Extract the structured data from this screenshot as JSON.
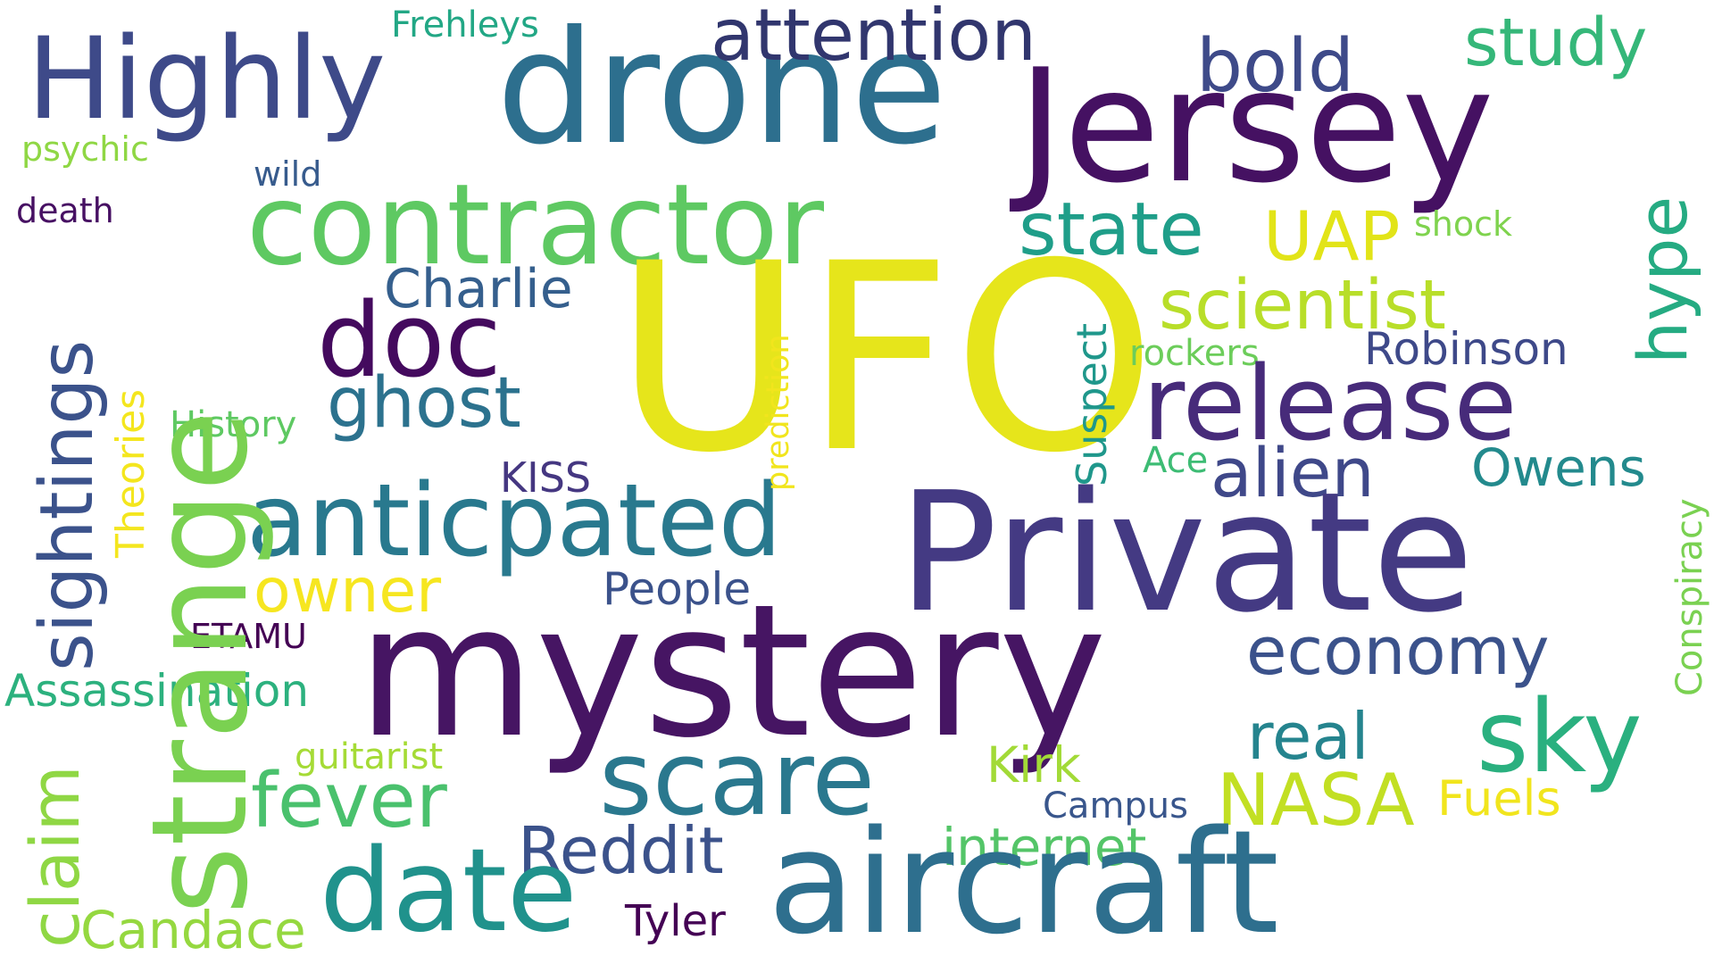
{
  "words": {
    "ufo": {
      "text": "UFO",
      "color": "#e6e51b"
    },
    "mystery": {
      "text": "mystery",
      "color": "#461563"
    },
    "private": {
      "text": "Private",
      "color": "#443a83"
    },
    "drone": {
      "text": "drone",
      "color": "#2d6f8e"
    },
    "jersey": {
      "text": "Jersey",
      "color": "#451162"
    },
    "aircraft": {
      "text": "aircraft",
      "color": "#2e6f8e"
    },
    "strange": {
      "text": "strange",
      "color": "#7ad151"
    },
    "contractor": {
      "text": "contractor",
      "color": "#5ec962"
    },
    "highly": {
      "text": "Highly",
      "color": "#3e4a89"
    },
    "release": {
      "text": "release",
      "color": "#472b7a"
    },
    "anticpated": {
      "text": "anticpated",
      "color": "#29798e"
    },
    "date": {
      "text": "date",
      "color": "#20928c"
    },
    "scare": {
      "text": "scare",
      "color": "#2a788e"
    },
    "doc": {
      "text": "doc",
      "color": "#440a5e"
    },
    "sky": {
      "text": "sky",
      "color": "#2ab07f"
    },
    "sightings": {
      "text": "sightings",
      "color": "#3b528b"
    },
    "ghost": {
      "text": "ghost",
      "color": "#2c728e"
    },
    "state": {
      "text": "state",
      "color": "#1f9e89"
    },
    "fever": {
      "text": "fever",
      "color": "#4ac16d"
    },
    "hype": {
      "text": "hype",
      "color": "#25ab82"
    },
    "claim": {
      "text": "claim",
      "color": "#8fd744"
    },
    "alien": {
      "text": "alien",
      "color": "#3f4889"
    },
    "reddit": {
      "text": "Reddit",
      "color": "#3b528b"
    },
    "attention": {
      "text": "attention",
      "color": "#31366e"
    },
    "bold": {
      "text": "bold",
      "color": "#3e4a89"
    },
    "scientist": {
      "text": "scientist",
      "color": "#b8de29"
    },
    "nasa": {
      "text": "NASA",
      "color": "#c2df23"
    },
    "economy": {
      "text": "economy",
      "color": "#3b528b"
    },
    "study": {
      "text": "study",
      "color": "#35b779"
    },
    "uap": {
      "text": "UAP",
      "color": "#e2e418"
    },
    "real": {
      "text": "real",
      "color": "#25848e"
    },
    "owner": {
      "text": "owner",
      "color": "#f6e620"
    },
    "candace": {
      "text": "Candace",
      "color": "#95d840"
    },
    "charlie": {
      "text": "Charlie",
      "color": "#355f8d"
    },
    "owens": {
      "text": "Owens",
      "color": "#238a8d"
    },
    "internet": {
      "text": "internet",
      "color": "#54c568"
    },
    "kirk": {
      "text": "Kirk",
      "color": "#a2da37"
    },
    "fuels": {
      "text": "Fuels",
      "color": "#f1e51d"
    },
    "robinson": {
      "text": "Robinson",
      "color": "#3e4989"
    },
    "assassination": {
      "text": "Assassination",
      "color": "#2cb17e"
    },
    "people": {
      "text": "People",
      "color": "#3b528b"
    },
    "tyler": {
      "text": "Tyler",
      "color": "#440154"
    },
    "theories": {
      "text": "Theories",
      "color": "#f4e61e"
    },
    "prediction": {
      "text": "prediction",
      "color": "#f1e51d"
    },
    "conspiracy": {
      "text": "Conspiracy",
      "color": "#7ad151"
    },
    "suspect": {
      "text": "Suspect",
      "color": "#1f978b"
    },
    "kiss": {
      "text": "KISS",
      "color": "#453781"
    },
    "history": {
      "text": "History",
      "color": "#5ec962"
    },
    "guitarist": {
      "text": "guitarist",
      "color": "#a5db36"
    },
    "campus": {
      "text": "Campus",
      "color": "#39568c"
    },
    "etamu": {
      "text": "ETAMU",
      "color": "#440154"
    },
    "rockers": {
      "text": "rockers",
      "color": "#6ccd5a"
    },
    "ace": {
      "text": "Ace",
      "color": "#3dbc74"
    },
    "shock": {
      "text": "shock",
      "color": "#7fd34e"
    },
    "frehleys": {
      "text": "Frehleys",
      "color": "#22a785"
    },
    "psychic": {
      "text": "psychic",
      "color": "#8fd744"
    },
    "wild": {
      "text": "wild",
      "color": "#375b8d"
    },
    "death": {
      "text": "death",
      "color": "#471063"
    }
  }
}
